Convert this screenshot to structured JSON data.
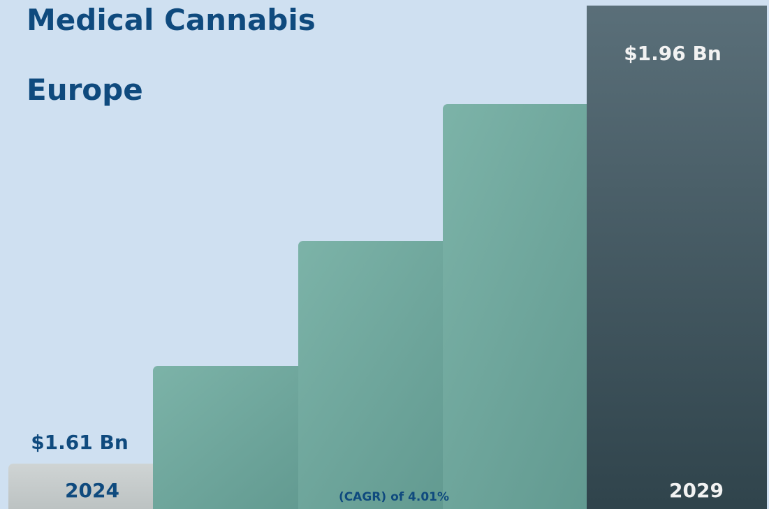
{
  "header": {
    "line1": "Medical Cannabis",
    "line2": "Europe"
  },
  "colors": {
    "background": "#cfe0f1",
    "title": "#0f4a7e",
    "start_bar": "#c5cbcb",
    "middle_bar": "#6fa79d",
    "end_bar": "#415c66",
    "label_dark": "#0f4a7e",
    "label_light": "#f2f2f2"
  },
  "chart_data": {
    "type": "bar",
    "title": "",
    "categories": [
      "2024",
      "",
      "",
      "",
      "2029"
    ],
    "values": [
      1.61,
      null,
      null,
      null,
      1.96
    ],
    "value_labels": [
      "$1.61 Bn",
      "",
      "",
      "",
      "$1.96 Bn"
    ],
    "year_labels": [
      "2024",
      "",
      "",
      "",
      "2029"
    ],
    "relative_heights": [
      0.09,
      0.284,
      0.533,
      0.804,
      1.0
    ],
    "annotation": "(CAGR) of 4.01%",
    "xlabel": "",
    "ylabel": "",
    "grid": false,
    "legend": "none"
  }
}
